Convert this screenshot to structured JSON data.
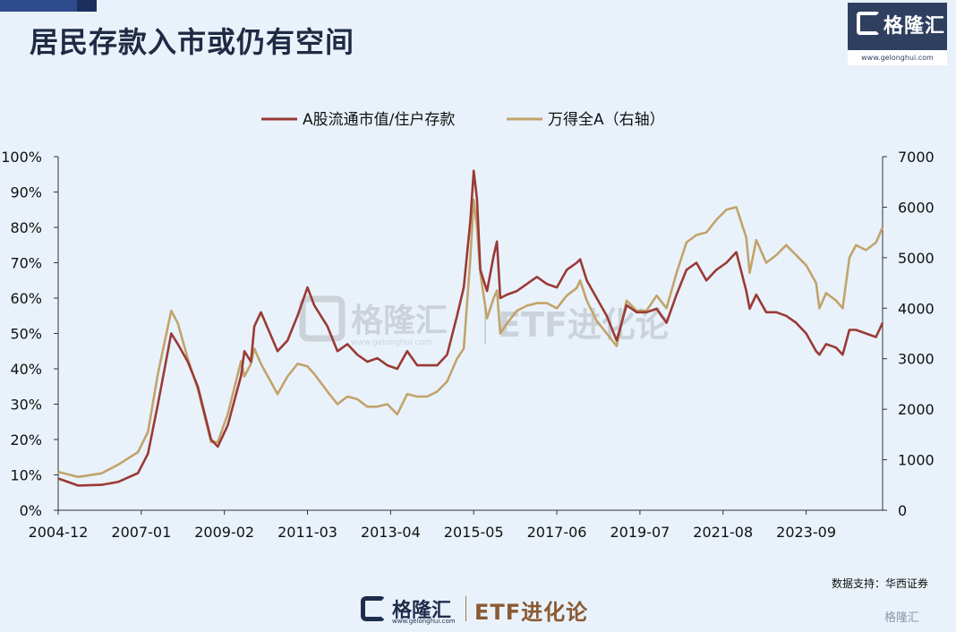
{
  "title": "居民存款入市或仍有空间",
  "brand": {
    "name": "格隆汇",
    "url": "www.gelonghui.com"
  },
  "watermark": {
    "name": "格隆汇",
    "url": "www.gelonghui.com",
    "etf": "ETF进化论"
  },
  "source_note": "数据支持：华西证券",
  "bottom_brand": {
    "name": "格隆汇",
    "url": "www.gelonghui.com",
    "etf": "ETF进化论"
  },
  "corner_mark": "格隆汇",
  "colors": {
    "series1": "#9a3a36",
    "series2": "#c2a36b",
    "axis": "#333333",
    "text": "#111111"
  },
  "chart_data": {
    "type": "line",
    "x_tick_labels": [
      "2004-12",
      "2007-01",
      "2009-02",
      "2011-03",
      "2013-04",
      "2015-05",
      "2017-06",
      "2019-07",
      "2021-08",
      "2023-09"
    ],
    "xlim": [
      "2004-12",
      "2025-08"
    ],
    "y_left": {
      "ticks": [
        "0%",
        "10%",
        "20%",
        "30%",
        "40%",
        "50%",
        "60%",
        "70%",
        "80%",
        "90%",
        "100%"
      ],
      "lim": [
        0,
        100
      ]
    },
    "y_right": {
      "ticks": [
        "0",
        "1000",
        "2000",
        "3000",
        "4000",
        "5000",
        "6000",
        "7000"
      ],
      "lim": [
        0,
        7000
      ]
    },
    "legend_position": "top",
    "series": [
      {
        "name": "A股流通市值/住户存款",
        "axis": "left",
        "color": "#9a3a36",
        "points": [
          [
            "2004-12",
            9
          ],
          [
            "2005-06",
            7
          ],
          [
            "2006-01",
            7.2
          ],
          [
            "2006-06",
            8
          ],
          [
            "2006-12",
            10.5
          ],
          [
            "2007-03",
            16
          ],
          [
            "2007-06",
            30
          ],
          [
            "2007-10",
            50
          ],
          [
            "2007-12",
            47
          ],
          [
            "2008-03",
            42
          ],
          [
            "2008-06",
            35
          ],
          [
            "2008-10",
            20
          ],
          [
            "2008-12",
            18
          ],
          [
            "2009-03",
            24
          ],
          [
            "2009-07",
            38
          ],
          [
            "2009-08",
            45
          ],
          [
            "2009-10",
            42
          ],
          [
            "2009-11",
            52
          ],
          [
            "2010-01",
            56
          ],
          [
            "2010-06",
            45
          ],
          [
            "2010-09",
            48
          ],
          [
            "2010-12",
            55
          ],
          [
            "2011-03",
            63
          ],
          [
            "2011-05",
            58
          ],
          [
            "2011-09",
            52
          ],
          [
            "2011-12",
            45
          ],
          [
            "2012-03",
            47
          ],
          [
            "2012-06",
            44
          ],
          [
            "2012-09",
            42
          ],
          [
            "2012-12",
            43
          ],
          [
            "2013-03",
            41
          ],
          [
            "2013-06",
            40
          ],
          [
            "2013-09",
            45
          ],
          [
            "2013-12",
            41
          ],
          [
            "2014-03",
            41
          ],
          [
            "2014-06",
            41
          ],
          [
            "2014-09",
            44
          ],
          [
            "2014-12",
            55
          ],
          [
            "2015-02",
            63
          ],
          [
            "2015-04",
            82
          ],
          [
            "2015-05",
            96
          ],
          [
            "2015-06",
            88
          ],
          [
            "2015-07",
            68
          ],
          [
            "2015-09",
            62
          ],
          [
            "2015-11",
            72
          ],
          [
            "2015-12",
            76
          ],
          [
            "2016-01",
            60
          ],
          [
            "2016-03",
            61
          ],
          [
            "2016-06",
            62
          ],
          [
            "2016-09",
            64
          ],
          [
            "2016-12",
            66
          ],
          [
            "2017-03",
            64
          ],
          [
            "2017-06",
            63
          ],
          [
            "2017-09",
            68
          ],
          [
            "2017-12",
            70
          ],
          [
            "2018-01",
            71
          ],
          [
            "2018-03",
            65
          ],
          [
            "2018-06",
            60
          ],
          [
            "2018-09",
            55
          ],
          [
            "2018-12",
            48
          ],
          [
            "2019-03",
            58
          ],
          [
            "2019-06",
            56
          ],
          [
            "2019-09",
            56
          ],
          [
            "2019-12",
            57
          ],
          [
            "2020-03",
            53
          ],
          [
            "2020-06",
            61
          ],
          [
            "2020-09",
            68
          ],
          [
            "2020-12",
            70
          ],
          [
            "2021-03",
            65
          ],
          [
            "2021-06",
            68
          ],
          [
            "2021-09",
            70
          ],
          [
            "2021-12",
            73
          ],
          [
            "2022-03",
            62
          ],
          [
            "2022-04",
            57
          ],
          [
            "2022-06",
            61
          ],
          [
            "2022-09",
            56
          ],
          [
            "2022-12",
            56
          ],
          [
            "2023-03",
            55
          ],
          [
            "2023-06",
            53
          ],
          [
            "2023-09",
            50
          ],
          [
            "2023-12",
            45
          ],
          [
            "2024-01",
            44
          ],
          [
            "2024-03",
            47
          ],
          [
            "2024-06",
            46
          ],
          [
            "2024-08",
            44
          ],
          [
            "2024-10",
            51
          ],
          [
            "2024-12",
            51
          ],
          [
            "2025-03",
            50
          ],
          [
            "2025-06",
            49
          ],
          [
            "2025-08",
            53
          ]
        ]
      },
      {
        "name": "万得全A（右轴）",
        "axis": "right",
        "color": "#c2a36b",
        "points": [
          [
            "2004-12",
            760
          ],
          [
            "2005-06",
            660
          ],
          [
            "2006-01",
            730
          ],
          [
            "2006-06",
            900
          ],
          [
            "2006-12",
            1150
          ],
          [
            "2007-03",
            1550
          ],
          [
            "2007-06",
            2700
          ],
          [
            "2007-10",
            3950
          ],
          [
            "2007-12",
            3700
          ],
          [
            "2008-03",
            3000
          ],
          [
            "2008-06",
            2400
          ],
          [
            "2008-10",
            1350
          ],
          [
            "2008-12",
            1350
          ],
          [
            "2009-03",
            1900
          ],
          [
            "2009-07",
            2950
          ],
          [
            "2009-08",
            2650
          ],
          [
            "2009-10",
            2900
          ],
          [
            "2009-11",
            3200
          ],
          [
            "2010-01",
            2900
          ],
          [
            "2010-06",
            2300
          ],
          [
            "2010-09",
            2650
          ],
          [
            "2010-12",
            2900
          ],
          [
            "2011-03",
            2850
          ],
          [
            "2011-05",
            2700
          ],
          [
            "2011-09",
            2350
          ],
          [
            "2011-12",
            2100
          ],
          [
            "2012-03",
            2250
          ],
          [
            "2012-06",
            2200
          ],
          [
            "2012-09",
            2050
          ],
          [
            "2012-12",
            2050
          ],
          [
            "2013-03",
            2100
          ],
          [
            "2013-06",
            1900
          ],
          [
            "2013-09",
            2300
          ],
          [
            "2013-12",
            2250
          ],
          [
            "2014-03",
            2250
          ],
          [
            "2014-06",
            2350
          ],
          [
            "2014-09",
            2550
          ],
          [
            "2014-12",
            3000
          ],
          [
            "2015-02",
            3200
          ],
          [
            "2015-04",
            5000
          ],
          [
            "2015-05",
            6150
          ],
          [
            "2015-06",
            5600
          ],
          [
            "2015-07",
            4700
          ],
          [
            "2015-09",
            3800
          ],
          [
            "2015-11",
            4200
          ],
          [
            "2015-12",
            4350
          ],
          [
            "2016-01",
            3500
          ],
          [
            "2016-03",
            3700
          ],
          [
            "2016-06",
            3950
          ],
          [
            "2016-09",
            4050
          ],
          [
            "2016-12",
            4100
          ],
          [
            "2017-03",
            4100
          ],
          [
            "2017-06",
            4000
          ],
          [
            "2017-09",
            4250
          ],
          [
            "2017-12",
            4400
          ],
          [
            "2018-01",
            4550
          ],
          [
            "2018-03",
            4150
          ],
          [
            "2018-06",
            3750
          ],
          [
            "2018-09",
            3500
          ],
          [
            "2018-12",
            3250
          ],
          [
            "2019-03",
            4150
          ],
          [
            "2019-06",
            3950
          ],
          [
            "2019-09",
            3950
          ],
          [
            "2019-12",
            4250
          ],
          [
            "2020-03",
            4000
          ],
          [
            "2020-06",
            4700
          ],
          [
            "2020-09",
            5300
          ],
          [
            "2020-12",
            5450
          ],
          [
            "2021-03",
            5500
          ],
          [
            "2021-06",
            5750
          ],
          [
            "2021-09",
            5950
          ],
          [
            "2021-12",
            6000
          ],
          [
            "2022-03",
            5400
          ],
          [
            "2022-04",
            4700
          ],
          [
            "2022-06",
            5350
          ],
          [
            "2022-09",
            4900
          ],
          [
            "2022-12",
            5050
          ],
          [
            "2023-03",
            5250
          ],
          [
            "2023-06",
            5050
          ],
          [
            "2023-09",
            4850
          ],
          [
            "2023-12",
            4500
          ],
          [
            "2024-01",
            4000
          ],
          [
            "2024-03",
            4300
          ],
          [
            "2024-06",
            4150
          ],
          [
            "2024-08",
            4000
          ],
          [
            "2024-10",
            5000
          ],
          [
            "2024-12",
            5250
          ],
          [
            "2025-03",
            5150
          ],
          [
            "2025-06",
            5300
          ],
          [
            "2025-08",
            5600
          ]
        ]
      }
    ]
  }
}
